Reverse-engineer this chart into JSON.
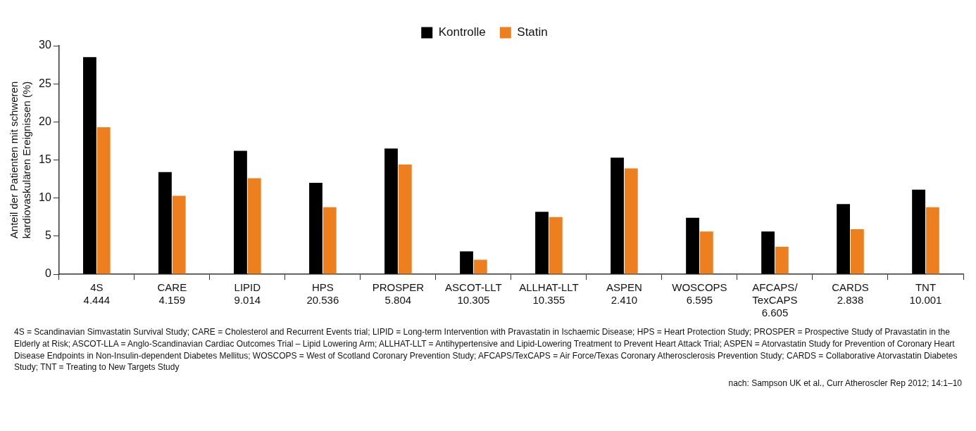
{
  "chart_data": {
    "type": "bar",
    "ylabel": "Anteil der Patienten mit schweren\nkardiovaskulären Ereignissen (%)",
    "categories": [
      "4S\n4.444",
      "CARE\n4.159",
      "LIPID\n9.014",
      "HPS\n20.536",
      "PROSPER\n5.804",
      "ASCOT-LLT\n10.305",
      "ALLHAT-LLT\n10.355",
      "ASPEN\n2.410",
      "WOSCOPS\n6.595",
      "AFCAPS/\nTexCAPS\n6.605",
      "CARDS\n2.838",
      "TNT\n10.001"
    ],
    "series": [
      {
        "name": "Kontrolle",
        "color": "#000000",
        "values": [
          28.5,
          13.4,
          16.2,
          12.0,
          16.5,
          3.0,
          8.2,
          15.3,
          7.4,
          5.6,
          9.2,
          11.1
        ]
      },
      {
        "name": "Statin",
        "color": "#ee7f1f",
        "values": [
          19.3,
          10.3,
          12.6,
          8.8,
          14.4,
          1.9,
          7.5,
          13.9,
          5.6,
          3.6,
          5.9,
          8.8
        ]
      }
    ],
    "ylim": [
      0,
      30
    ],
    "yticks": [
      0,
      5,
      10,
      15,
      20,
      25,
      30
    ],
    "grid": false,
    "legend": "top",
    "annotations": [
      "4S = Scandinavian Simvastatin Survival Study; CARE = Cholesterol and Recurrent Events trial; LIPID = Long-term Intervention with Pravastatin in Ischaemic Disease; HPS = Heart Protection Study; PROSPER = Prospective Study of Pravastatin in the Elderly at Risk; ASCOT-LLA = Anglo-Scandinavian Cardiac Outcomes Trial – Lipid Lowering Arm; ALLHAT-LLT = Antihypertensive and Lipid-Lowering Treatment to Prevent Heart Attack Trial; ASPEN = Atorvastatin Study for Prevention of Coronary Heart Disease Endpoints in Non-Insulin-dependent Diabetes Mellitus; WOSCOPS = West of Scotland Coronary Prevention Study; AFCAPS/TexCAPS = Air Force/Texas Coronary Atherosclerosis Prevention Study; CARDS = Collaborative Atorvastatin Diabetes Study; TNT = Treating to New Targets Study",
      "nach: Sampson UK et al., Curr Atheroscler Rep 2012; 14:1–10"
    ]
  }
}
